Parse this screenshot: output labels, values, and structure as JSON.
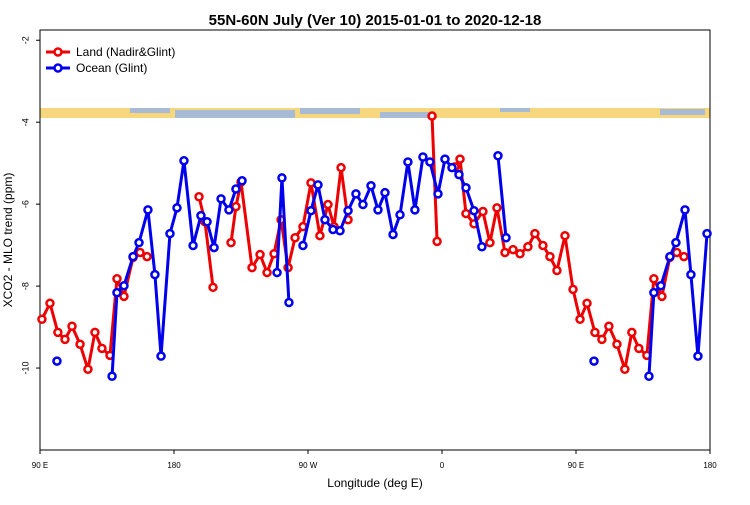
{
  "chart_data": {
    "type": "line",
    "title": "55N-60N July (Ver 10)   2015-01-01 to 2020-12-18",
    "x_label": "Longitude (deg E)",
    "y_label": "XCO2 - MLO trend (ppm)",
    "xlim": [
      90,
      540
    ],
    "xticks": [
      {
        "value": 90,
        "label": "90 E"
      },
      {
        "value": 180,
        "label": "180"
      },
      {
        "value": 270,
        "label": "90 W"
      },
      {
        "value": 360,
        "label": "0"
      },
      {
        "value": 450,
        "label": "90 E"
      },
      {
        "value": 540,
        "label": "180"
      }
    ],
    "ylim": [
      -12,
      -1.75
    ],
    "yticks": [
      -2,
      -4,
      -6,
      -8,
      -10
    ],
    "legend": "top-left",
    "series": [
      {
        "name": "Land (Nadir&Glint)",
        "color": "#ee0000",
        "x": [
          91.3,
          96.7,
          102,
          106.8,
          111.5,
          116.9,
          122.2,
          126.9,
          131.6,
          137,
          141.7,
          146.4,
          152.5,
          157.2,
          161.9,
          null,
          196.8,
          200.8,
          206.2,
          null,
          218.3,
          221.6,
          225,
          232.4,
          237.8,
          242.5,
          247.2,
          251.9,
          256.6,
          261.3,
          266.6,
          272,
          278,
          283.4,
          287.5,
          292.2,
          296.9,
          null,
          353.3,
          356.7,
          null,
          368.7,
          372.1,
          376.1,
          381.5,
          387.5,
          392.2,
          396.9,
          402.3,
          407.7,
          412.4,
          417.7,
          422.4,
          427.8,
          432.5,
          437.2,
          442.6,
          448,
          452.7,
          457.4,
          462.7,
          467.4,
          472.1,
          477.5,
          482.8,
          487.5,
          492.2,
          497.6,
          502.3,
          507.7,
          513,
          517.7,
          522.5
        ],
        "values": [
          -8.81,
          -8.42,
          -9.13,
          -9.3,
          -8.98,
          -9.42,
          -10.03,
          -9.13,
          -9.52,
          -9.69,
          -7.82,
          -8.25,
          -7.3,
          -7.18,
          -7.28,
          null,
          -5.82,
          -6.43,
          -8.03,
          null,
          -6.94,
          -6.06,
          -5.46,
          -7.55,
          -7.23,
          -7.67,
          -7.21,
          -6.38,
          -7.55,
          -6.82,
          -6.55,
          -5.48,
          -6.77,
          -6.01,
          -6.55,
          -5.11,
          -6.38,
          null,
          -3.85,
          -6.91,
          null,
          -5.09,
          -4.9,
          -6.23,
          -6.48,
          -6.18,
          -6.94,
          -6.09,
          -7.18,
          -7.11,
          -7.21,
          -7.04,
          -6.72,
          -7.01,
          -7.28,
          -7.62,
          -6.77,
          -8.08,
          -8.81,
          -8.42,
          -9.13,
          -9.3,
          -8.98,
          -9.42,
          -10.03,
          -9.13,
          -9.52,
          -9.69,
          -7.82,
          -8.25,
          -7.3,
          -7.18,
          -7.28
        ]
      },
      {
        "name": "Ocean (Glint)",
        "color": "#0000ee",
        "x": [
          101.4,
          null,
          138.4,
          141.7,
          146.4,
          152.5,
          156.5,
          162.5,
          167.2,
          171.3,
          177.3,
          182,
          186.7,
          192.8,
          198.1,
          202.2,
          206.9,
          211.6,
          216.9,
          221.6,
          225.7,
          null,
          249.2,
          252.5,
          257.2,
          null,
          266.6,
          272,
          276.7,
          281.4,
          286.8,
          291.5,
          296.9,
          302.2,
          306.9,
          312.3,
          317,
          321.7,
          327.1,
          331.8,
          337.1,
          341.8,
          347.2,
          351.9,
          357.3,
          362,
          366.7,
          371.4,
          376.1,
          381.5,
          386.8,
          null,
          397.6,
          403,
          null,
          462.1,
          null,
          499,
          502.3,
          507,
          513.1,
          517.1,
          523.2,
          527.2,
          531.9,
          538
        ],
        "values": [
          -9.83,
          null,
          -10.2,
          -8.16,
          -7.99,
          -7.28,
          -6.94,
          -6.14,
          -7.72,
          -9.71,
          -6.72,
          -6.09,
          -4.94,
          -7.01,
          -6.28,
          -6.43,
          -7.06,
          -5.87,
          -6.14,
          -5.63,
          -5.43,
          null,
          -7.67,
          -5.36,
          -8.4,
          null,
          -7.01,
          -6.16,
          -5.53,
          -6.38,
          -6.62,
          -6.65,
          -6.16,
          -5.75,
          -6.01,
          -5.55,
          -6.14,
          -5.72,
          -6.74,
          -6.26,
          -4.97,
          -6.14,
          -4.85,
          -4.97,
          -5.75,
          -4.9,
          -5.11,
          -5.28,
          -5.6,
          -6.16,
          -7.04,
          null,
          -4.82,
          -6.82,
          null,
          -9.83,
          null,
          -10.2,
          -8.16,
          -7.99,
          -7.28,
          -6.94,
          -6.14,
          -7.72,
          -9.71,
          -6.72
        ]
      }
    ]
  }
}
